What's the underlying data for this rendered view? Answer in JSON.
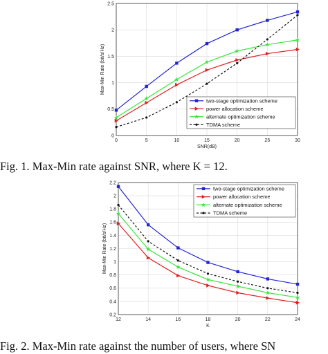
{
  "chart_data": [
    {
      "type": "line",
      "xlabel": "SNR(dB)",
      "ylabel": "Max-Min Rate (bit/s/Hz)",
      "x": [
        0,
        5,
        10,
        15,
        20,
        25,
        30
      ],
      "xticks": [
        "0",
        "5",
        "10",
        "15",
        "20",
        "25",
        "30"
      ],
      "yticks": [
        "0",
        "0.5",
        "1",
        "1.5",
        "2",
        "2.5"
      ],
      "xlim": [
        0,
        30
      ],
      "ylim": [
        0,
        2.5
      ],
      "legend_position": "lower-right",
      "series": [
        {
          "name": "two-stage optimization scheme",
          "color": "#2323d8",
          "marker": "square",
          "dash": false,
          "values": [
            0.48,
            0.93,
            1.37,
            1.74,
            2.0,
            2.18,
            2.34
          ]
        },
        {
          "name": "power allocation scheme",
          "color": "#e02020",
          "marker": "triangle-right",
          "dash": false,
          "values": [
            0.28,
            0.62,
            0.96,
            1.24,
            1.43,
            1.55,
            1.63
          ]
        },
        {
          "name": "alternate optimization scheme",
          "color": "#39e639",
          "marker": "star",
          "dash": false,
          "values": [
            0.34,
            0.7,
            1.06,
            1.39,
            1.6,
            1.72,
            1.81
          ]
        },
        {
          "name": "TDMA scheme",
          "color": "#111111",
          "marker": "dot",
          "dash": true,
          "values": [
            0.16,
            0.34,
            0.63,
            0.98,
            1.37,
            1.82,
            2.28
          ]
        }
      ]
    },
    {
      "type": "line",
      "xlabel": "K",
      "ylabel": "Max-Min Rate (bit/s/Hz)",
      "x": [
        12,
        14,
        16,
        18,
        20,
        22,
        24
      ],
      "xticks": [
        "12",
        "14",
        "16",
        "18",
        "20",
        "22",
        "24"
      ],
      "yticks": [
        "0.2",
        "0.4",
        "0.6",
        "0.8",
        "1",
        "1.2",
        "1.4",
        "1.6",
        "1.8",
        "2",
        "2.2"
      ],
      "xlim": [
        12,
        24
      ],
      "ylim": [
        0.2,
        2.2
      ],
      "legend_position": "top-right",
      "series": [
        {
          "name": "two-stage optimization scheme",
          "color": "#2323d8",
          "marker": "square",
          "dash": false,
          "values": [
            2.14,
            1.56,
            1.21,
            0.99,
            0.85,
            0.74,
            0.66
          ]
        },
        {
          "name": "power allocation scheme",
          "color": "#e02020",
          "marker": "triangle-right",
          "dash": false,
          "values": [
            1.58,
            1.06,
            0.79,
            0.64,
            0.53,
            0.45,
            0.38
          ]
        },
        {
          "name": "alternate optimization scheme",
          "color": "#39e639",
          "marker": "star",
          "dash": false,
          "values": [
            1.73,
            1.19,
            0.92,
            0.73,
            0.63,
            0.53,
            0.46
          ]
        },
        {
          "name": "TDMA scheme",
          "color": "#111111",
          "marker": "dot",
          "dash": true,
          "values": [
            1.86,
            1.31,
            1.02,
            0.82,
            0.7,
            0.6,
            0.53
          ]
        }
      ]
    }
  ],
  "captions": {
    "fig1": "Fig. 1.    Max-Min rate against SNR, where K = 12.",
    "fig2": "Fig. 2.    Max-Min rate against the number of users, where SN"
  }
}
